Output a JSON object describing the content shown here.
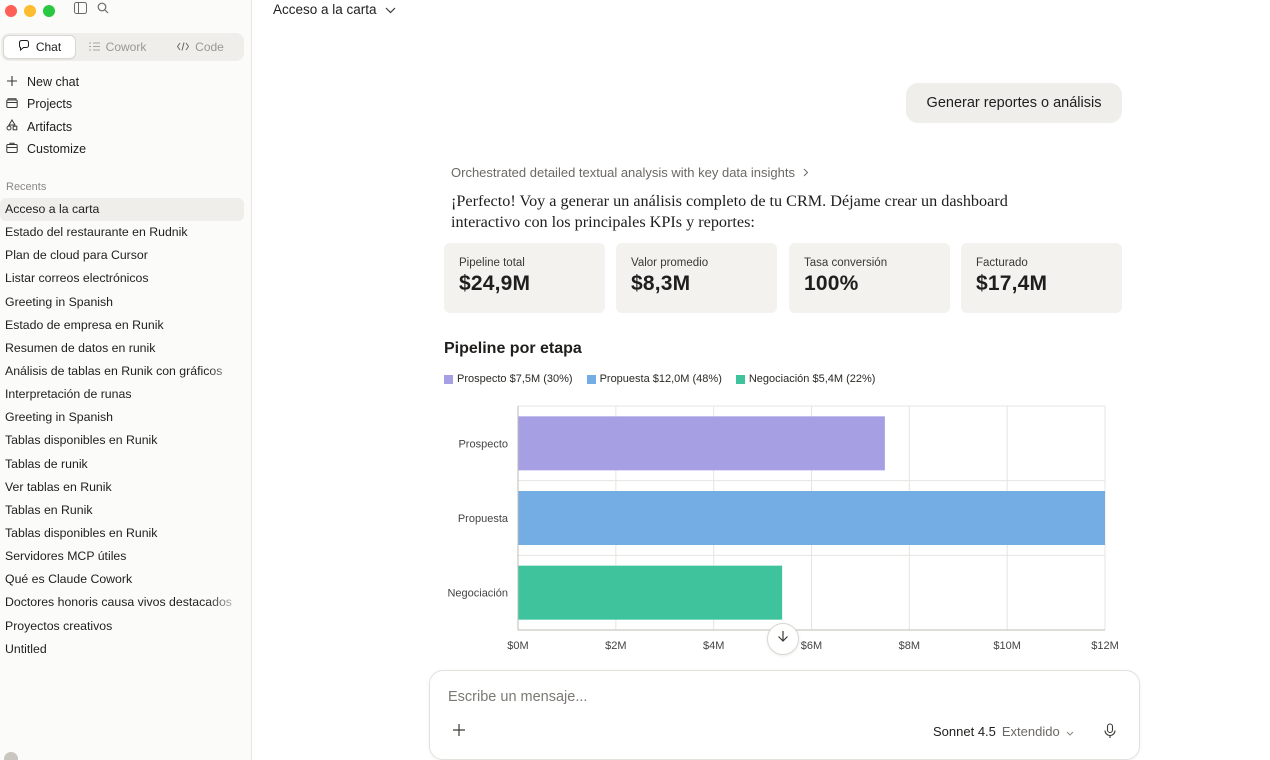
{
  "sidebar": {
    "tabs": [
      {
        "label": "Chat",
        "icon": "chat-bubble-icon"
      },
      {
        "label": "Cowork",
        "icon": "cowork-icon"
      },
      {
        "label": "Code",
        "icon": "code-icon"
      }
    ],
    "nav": [
      {
        "label": "New chat",
        "icon": "plus-icon"
      },
      {
        "label": "Projects",
        "icon": "folder-icon"
      },
      {
        "label": "Artifacts",
        "icon": "artifacts-icon"
      },
      {
        "label": "Customize",
        "icon": "customize-icon"
      }
    ],
    "recents_title": "Recents",
    "recents": [
      "Acceso a la carta",
      "Estado del restaurante en Rudnik",
      "Plan de cloud para Cursor",
      "Listar correos electrónicos",
      "Greeting in Spanish",
      "Estado de empresa en Runik",
      "Resumen de datos en runik",
      "Análisis de tablas en Runik con gráficos",
      "Interpretación de runas",
      "Greeting in Spanish",
      "Tablas disponibles en Runik",
      "Tablas de runik",
      "Ver tablas en Runik",
      "Tablas en Runik",
      "Tablas disponibles en Runik",
      "Servidores MCP útiles",
      "Qué es Claude Cowork",
      "Doctores honoris causa vivos destacados",
      "Proyectos creativos",
      "Untitled"
    ]
  },
  "header": {
    "title": "Acceso a la carta"
  },
  "conversation": {
    "user_message": "Generar reportes o análisis",
    "thinking_summary": "Orchestrated detailed textual analysis with key data insights",
    "response_text": "¡Perfecto! Voy a generar un análisis completo de tu CRM. Déjame crear un dashboard interactivo con los principales KPIs y reportes:"
  },
  "kpis": [
    {
      "label": "Pipeline total",
      "value": "$24,9M"
    },
    {
      "label": "Valor promedio",
      "value": "$8,3M"
    },
    {
      "label": "Tasa conversión",
      "value": "100%"
    },
    {
      "label": "Facturado",
      "value": "$17,4M"
    }
  ],
  "chart_title": "Pipeline por etapa",
  "legend": [
    {
      "label": "Prospecto $7,5M (30%)",
      "color": "#a79fe3"
    },
    {
      "label": "Propuesta $12,0M (48%)",
      "color": "#74ade3"
    },
    {
      "label": "Negociación $5,4M (22%)",
      "color": "#3fc39c"
    }
  ],
  "chart_data": {
    "type": "bar",
    "orientation": "horizontal",
    "categories": [
      "Prospecto",
      "Propuesta",
      "Negociación"
    ],
    "values": [
      7.5,
      12.0,
      5.4
    ],
    "colors": [
      "#a79fe3",
      "#74ade3",
      "#3fc39c"
    ],
    "unit": "M",
    "xlim": [
      0,
      12
    ],
    "xticks": [
      "$0M",
      "$2M",
      "$4M",
      "$6M",
      "$8M",
      "$10M",
      "$12M"
    ],
    "grid": true
  },
  "composer": {
    "placeholder": "Escribe un mensaje...",
    "model": "Sonnet 4.5",
    "mode": "Extendido"
  }
}
